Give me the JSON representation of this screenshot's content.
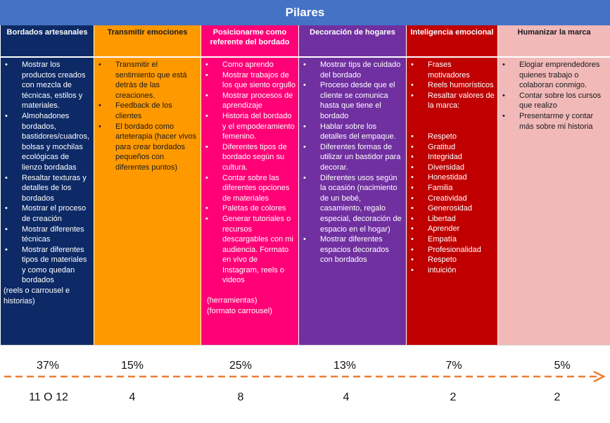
{
  "title": "Pilares",
  "colors": {
    "title_bar": "#4472c4",
    "col1": "#0d2a66",
    "col2": "#ff9900",
    "col3": "#ff0077",
    "col4": "#7030a0",
    "col5": "#c00000",
    "col6": "#f2b9b9",
    "arrow": "#ed7d31"
  },
  "columns": [
    {
      "header": "Bordados artesanales",
      "items": [
        "Mostrar los productos creados con mezcla de técnicas, estilos y materiales.",
        "Almohadones bordados, bastidores/cuadros, bolsas y mochilas ecológicas de lienzo bordadas",
        "Resaltar texturas y detalles de los bordados",
        "Mostrar el proceso de creación",
        "Mostrar diferentes técnicas",
        "Mostrar diferentes tipos de materiales y como quedan bordados"
      ],
      "note": "(reels o carrousel e historias)"
    },
    {
      "header": "Transmitir emociones",
      "items": [
        "Transmitir el sentimiento que está detrás de las creaciones.",
        "Feedback de los clientes",
        "El bordado como arteterapia (hacer vivos para crear bordados pequeños con diferentes puntos)"
      ]
    },
    {
      "header": "Posicionarme como referente del bordado",
      "items": [
        "Como aprendo",
        "Mostrar trabajos de los que siento orgullo",
        "Mostrar procesos de aprendizaje",
        "Historia del bordado y el empoderamiento femenino.",
        "Diferentes tipos de bordado según su cultura.",
        "Contar sobre las diferentes opciones de materiales",
        "Paletas de colores",
        "Generar tutoriales o recursos descargables con mi audiencia. Formato en vivo de Instagram, reels o videos"
      ],
      "note1": "(herramientas)",
      "note2": "(formato carrousel)"
    },
    {
      "header": "Decoración de hogares",
      "items": [
        "Mostrar tips de cuidado del bordado",
        "Proceso desde que el cliente se comunica hasta que tiene el bordado",
        "Hablar sobre los detalles del empaque.",
        "Diferentes formas de utilizar un bastidor para decorar.",
        "Diferentes usos según la ocasión (nacimiento de un bebé, casamiento, regalo especial, decoración de espacio en el hogar)",
        "Mostrar diferentes espacios decorados con bordados"
      ]
    },
    {
      "header": "Inteligencia emocional",
      "items": [
        "Frases motivadores",
        "Reels humorísticos",
        "Resaltar valores de la marca:"
      ],
      "values": [
        "Respeto",
        "Gratitud",
        "Integridad",
        "Diversidad",
        "Honestidad",
        "Familia",
        "Creatividad",
        "Generosidad",
        "Libertad",
        "Aprender",
        "Empatía",
        "Profesionalidad",
        "Respeto",
        "intuición"
      ]
    },
    {
      "header": "Humanizar la marca",
      "items": [
        "Elogiar emprendedores quienes trabajo o colaboran conmigo.",
        "Contar sobre los cursos que realizo",
        "Presentarme y contar más sobre mi historia"
      ]
    }
  ],
  "percentages": [
    "37%",
    "15%",
    "25%",
    "13%",
    "7%",
    "5%"
  ],
  "counts": [
    "11 O 12",
    "4",
    "8",
    "4",
    "2",
    "2"
  ]
}
